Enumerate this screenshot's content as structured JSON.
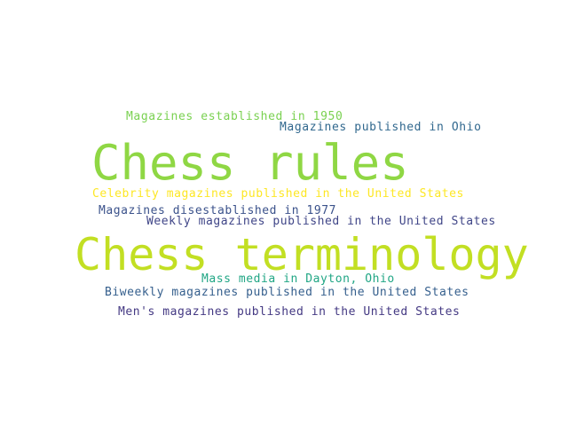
{
  "words": [
    {
      "text": "Magazines established in 1950",
      "color": "#7ad151"
    },
    {
      "text": "Magazines published in Ohio",
      "color": "#31688e"
    },
    {
      "text": "Chess rules",
      "color": "#8fd744"
    },
    {
      "text": "Celebrity magazines published in the United States",
      "color": "#fde725"
    },
    {
      "text": "Magazines disestablished in 1977",
      "color": "#3b528b"
    },
    {
      "text": "Weekly magazines published in the United States",
      "color": "#404688"
    },
    {
      "text": "Chess terminology",
      "color": "#c2df23"
    },
    {
      "text": "Mass media in Dayton, Ohio",
      "color": "#21a685"
    },
    {
      "text": "Biweekly magazines published in the United States",
      "color": "#355f8d"
    },
    {
      "text": "Men's magazines published in the United States",
      "color": "#443983"
    }
  ]
}
